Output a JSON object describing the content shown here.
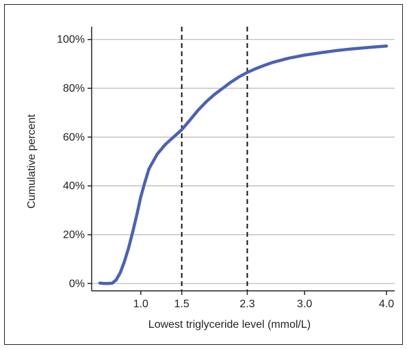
{
  "chart_data": {
    "type": "line",
    "xlabel": "Lowest triglyceride level (mmol/L)",
    "ylabel": "Cumulative percent",
    "xlim": [
      0.4,
      4.1
    ],
    "ylim": [
      -3,
      103
    ],
    "x_ticks": [
      {
        "value": 1.0,
        "label": "1.0"
      },
      {
        "value": 1.5,
        "label": "1.5"
      },
      {
        "value": 2.3,
        "label": "2.3"
      },
      {
        "value": 3.0,
        "label": "3.0"
      },
      {
        "value": 4.0,
        "label": "4.0"
      }
    ],
    "y_ticks": [
      {
        "value": 0,
        "label": "0%"
      },
      {
        "value": 20,
        "label": "20%"
      },
      {
        "value": 40,
        "label": "40%"
      },
      {
        "value": 60,
        "label": "60%"
      },
      {
        "value": 80,
        "label": "80%"
      },
      {
        "value": 100,
        "label": "100%"
      }
    ],
    "grid": {
      "horizontal": true,
      "vertical": false
    },
    "reference_lines_x": [
      1.5,
      2.3
    ],
    "series": [
      {
        "color": "#4a62b5",
        "points": [
          [
            0.5,
            0.2
          ],
          [
            0.55,
            0.0
          ],
          [
            0.6,
            0.0
          ],
          [
            0.65,
            0.1
          ],
          [
            0.7,
            1.5
          ],
          [
            0.75,
            4.5
          ],
          [
            0.8,
            9.0
          ],
          [
            0.85,
            14.5
          ],
          [
            0.9,
            21.0
          ],
          [
            0.95,
            28.0
          ],
          [
            1.0,
            35.5
          ],
          [
            1.05,
            41.5
          ],
          [
            1.1,
            47.0
          ],
          [
            1.2,
            53.0
          ],
          [
            1.3,
            57.0
          ],
          [
            1.4,
            60.0
          ],
          [
            1.5,
            63.0
          ],
          [
            1.6,
            67.0
          ],
          [
            1.7,
            71.0
          ],
          [
            1.8,
            74.5
          ],
          [
            1.9,
            77.5
          ],
          [
            2.0,
            80.0
          ],
          [
            2.1,
            82.5
          ],
          [
            2.2,
            84.7
          ],
          [
            2.3,
            86.5
          ],
          [
            2.4,
            88.0
          ],
          [
            2.5,
            89.3
          ],
          [
            2.6,
            90.5
          ],
          [
            2.8,
            92.3
          ],
          [
            3.0,
            93.6
          ],
          [
            3.2,
            94.6
          ],
          [
            3.4,
            95.5
          ],
          [
            3.6,
            96.2
          ],
          [
            3.8,
            96.8
          ],
          [
            4.0,
            97.3
          ]
        ]
      }
    ]
  }
}
